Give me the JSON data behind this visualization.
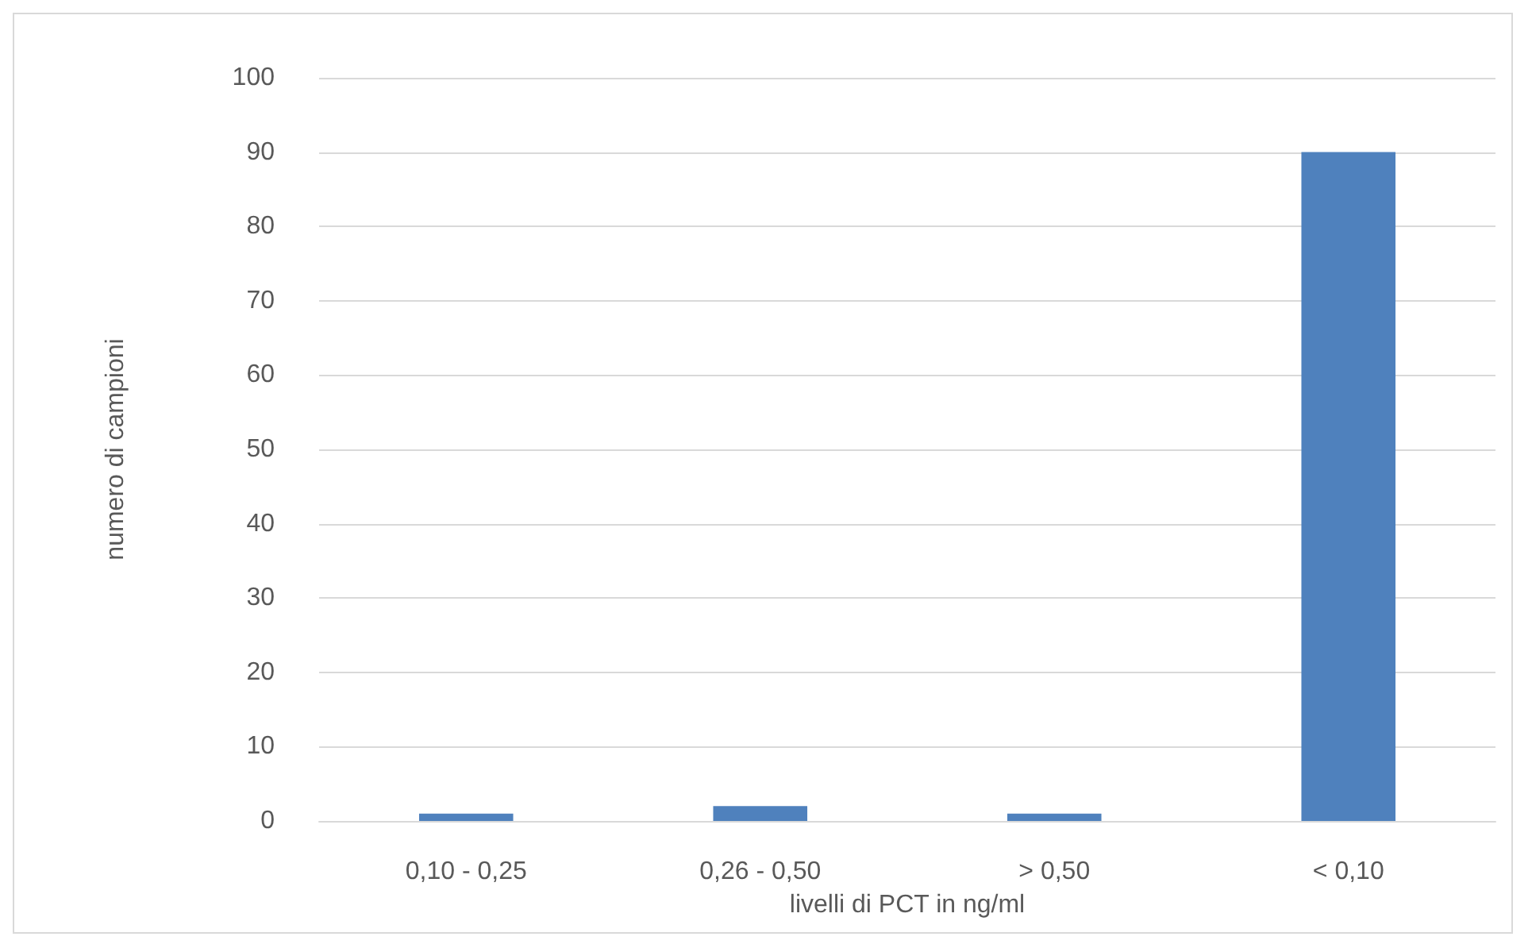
{
  "chart_data": {
    "type": "bar",
    "categories": [
      "0,10 - 0,25",
      "0,26 - 0,50",
      "> 0,50",
      "< 0,10"
    ],
    "values": [
      1,
      2,
      1,
      90
    ],
    "color": "#4f81bd",
    "xlabel": "livelli di PCT in ng/ml",
    "ylabel": "numero di campioni",
    "ylim": [
      0,
      100
    ],
    "yticks": [
      0,
      10,
      20,
      30,
      40,
      50,
      60,
      70,
      80,
      90,
      100
    ],
    "grid": "y"
  }
}
